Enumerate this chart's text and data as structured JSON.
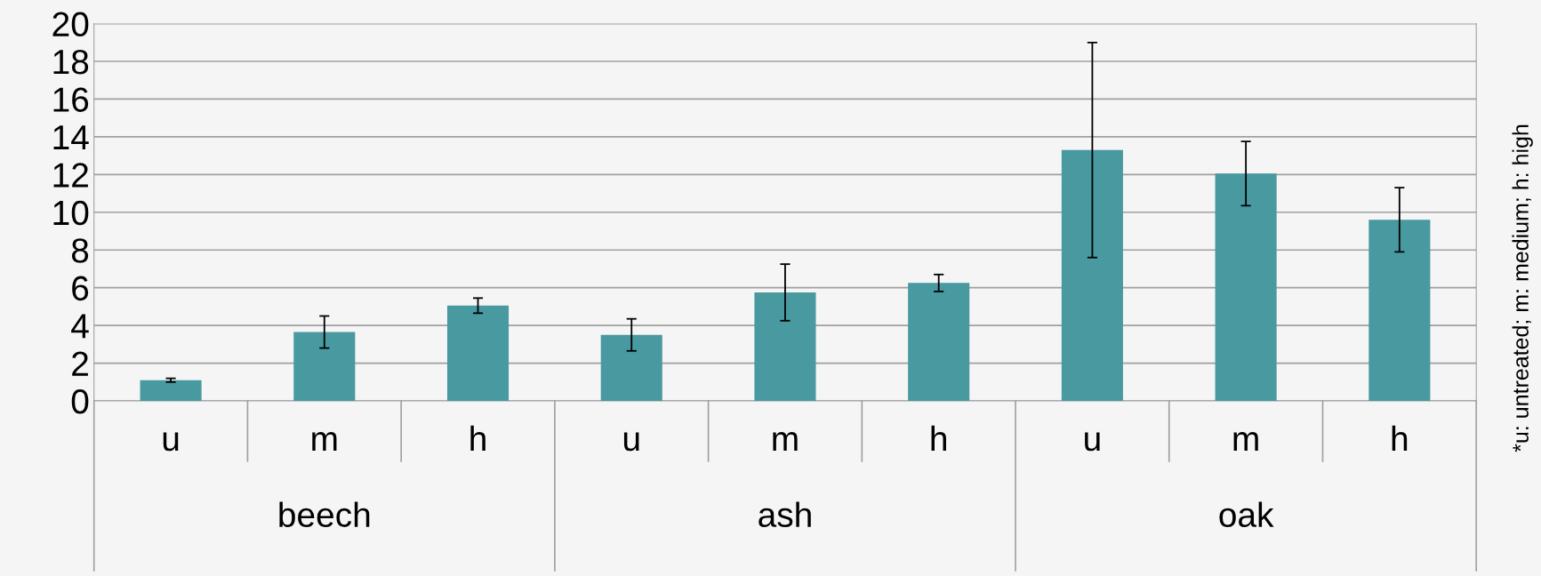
{
  "chart_data": {
    "type": "bar",
    "categories": [
      "u",
      "m",
      "h",
      "u",
      "m",
      "h",
      "u",
      "m",
      "h"
    ],
    "values": [
      1.1,
      3.65,
      5.05,
      3.5,
      5.75,
      6.25,
      13.3,
      12.05,
      9.6
    ],
    "errors": [
      0.1,
      0.85,
      0.4,
      0.85,
      1.5,
      0.45,
      5.7,
      1.7,
      1.7
    ],
    "color": "#4899a0",
    "ylim": [
      0,
      20
    ],
    "yticks": [
      0,
      2,
      4,
      6,
      8,
      10,
      12,
      14,
      16,
      18,
      20
    ],
    "grid": "y",
    "annotations": [
      "beech",
      "ash",
      "oak",
      "*u: untreated; m: medium; h: high"
    ]
  }
}
